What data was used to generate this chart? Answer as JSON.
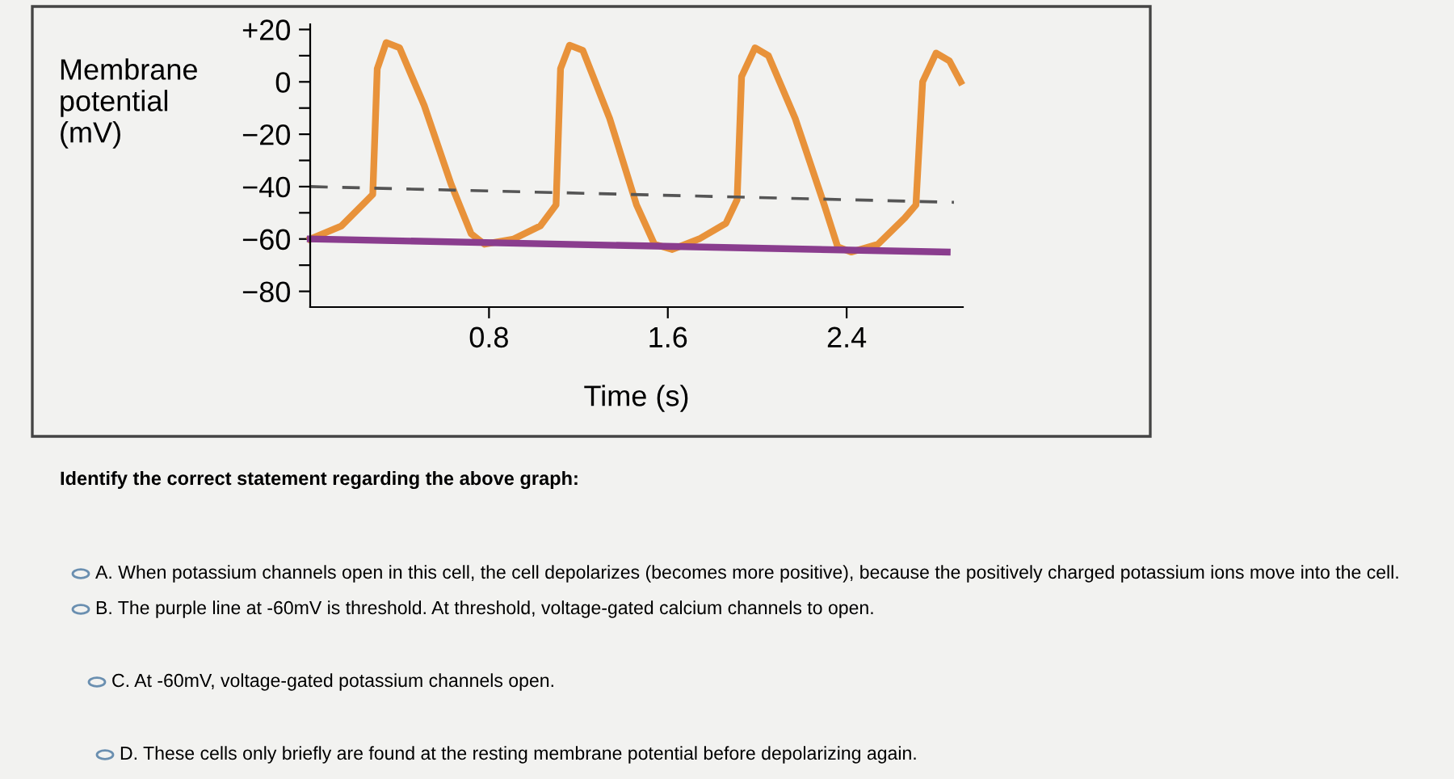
{
  "chart_data": {
    "type": "line",
    "xlabel": "Time (s)",
    "ylabel": "Membrane\npotential\n(mV)",
    "series": [
      {
        "color": "#e8923a",
        "x": [
          0,
          0.14,
          0.28,
          0.3,
          0.34,
          0.4,
          0.51,
          0.63,
          0.72,
          0.78,
          0.91,
          1.03,
          1.1,
          1.12,
          1.16,
          1.22,
          1.34,
          1.46,
          1.54,
          1.62,
          1.74,
          1.86,
          1.91,
          1.93,
          1.99,
          2.05,
          2.17,
          2.3,
          2.36,
          2.42,
          2.54,
          2.66,
          2.71,
          2.74,
          2.8,
          2.86,
          2.91
        ],
        "values": [
          -60,
          -55,
          -43,
          5,
          15,
          13,
          -9,
          -39,
          -58,
          -62,
          -60,
          -55,
          -47,
          5,
          14,
          12,
          -14,
          -47,
          -62,
          -64,
          -60,
          -54,
          -45,
          2,
          13,
          10,
          -14,
          -47,
          -63,
          -65,
          -62,
          -52,
          -47,
          0,
          11,
          8,
          0
        ]
      },
      {
        "color": "#8a3d8e",
        "x": [
          0,
          2.85
        ],
        "values": [
          -60,
          -65
        ]
      },
      {
        "color": "#555555",
        "x": [
          0,
          2.88
        ],
        "values": [
          -40,
          -46
        ],
        "line_style": "dashed"
      }
    ],
    "xlim": [
      0,
      2.92
    ],
    "ylim": [
      -86,
      22
    ],
    "xticks": [
      0.8,
      1.6,
      2.4
    ],
    "yticks": [
      {
        "value": 20,
        "label": "+20"
      },
      {
        "value": 10,
        "label": null
      },
      0,
      {
        "value": -10,
        "label": null
      },
      {
        "value": -20,
        "label": "−20"
      },
      {
        "value": -30,
        "label": null
      },
      {
        "value": -40,
        "label": "−40"
      },
      {
        "value": -50,
        "label": null
      },
      {
        "value": -60,
        "label": "−60"
      },
      {
        "value": -70,
        "label": null
      },
      {
        "value": -80,
        "label": "−80"
      }
    ],
    "grid": false,
    "legend": false,
    "annotations": [
      "Identify the correct statement regarding the above graph:",
      "A. When potassium channels open in this cell, the cell depolarizes (becomes more positive), because the positively charged potassium ions move into the cell.",
      "B. The purple line at -60mV is threshold. At threshold, voltage-gated calcium channels to open.",
      "C. At -60mV, voltage-gated potassium channels open.",
      "D. These cells only briefly are found at the resting membrane potential before depolarizing again."
    ]
  }
}
